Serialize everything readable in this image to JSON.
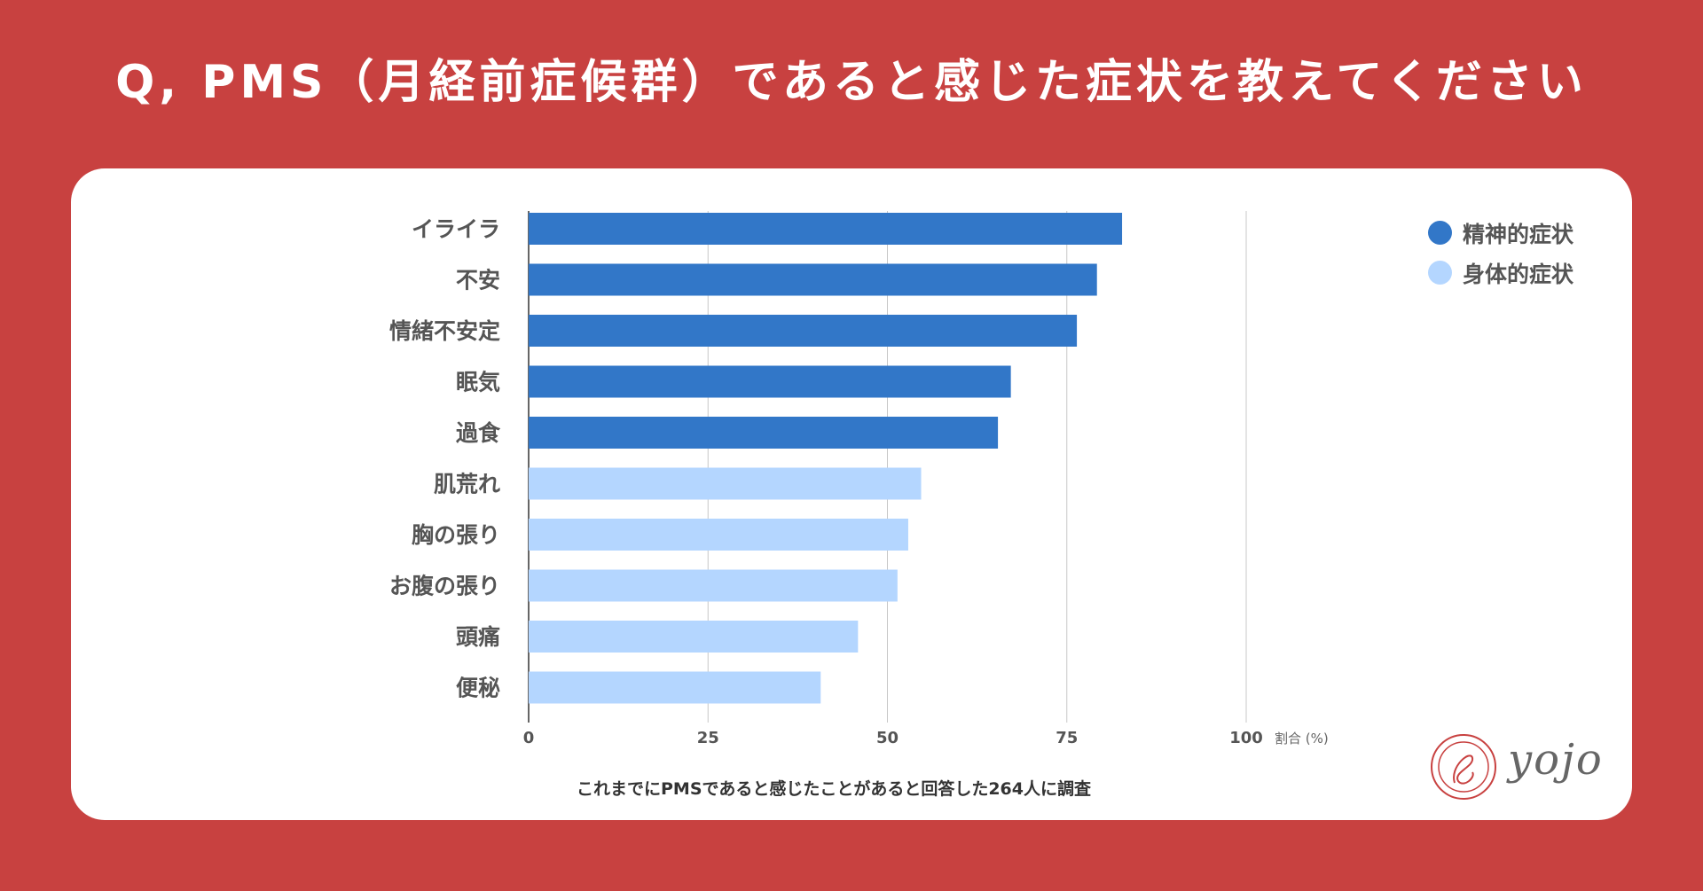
{
  "title": "Q, PMS（月経前症候群）であると感じた症状を教えてください",
  "footnote": "これまでにPMSであると感じたことがあると回答した264人に調査",
  "logo": {
    "text": "yojo"
  },
  "colors": {
    "background": "#c84140",
    "mental": "#3277c8",
    "physical": "#b4d6ff",
    "grid": "#c8c8c8"
  },
  "legend": [
    {
      "label": "精神的症状",
      "color": "#3277c8"
    },
    {
      "label": "身体的症状",
      "color": "#b4d6ff"
    }
  ],
  "chart_data": {
    "type": "bar",
    "orientation": "horizontal",
    "categories": [
      "イライラ",
      "不安",
      "情緒不安定",
      "眠気",
      "過食",
      "肌荒れ",
      "胸の張り",
      "お腹の張り",
      "頭痛",
      "便秘"
    ],
    "values": [
      82.7,
      79.2,
      76.4,
      67.2,
      65.4,
      54.7,
      52.9,
      51.4,
      45.9,
      40.7
    ],
    "groups": [
      "精神的症状",
      "精神的症状",
      "精神的症状",
      "精神的症状",
      "精神的症状",
      "身体的症状",
      "身体的症状",
      "身体的症状",
      "身体的症状",
      "身体的症状"
    ],
    "xlim": [
      0,
      100
    ],
    "xticks": [
      0,
      25,
      50,
      75,
      100
    ],
    "xlabel": "割合 (%)",
    "grid": true,
    "legend_position": "top-right"
  }
}
